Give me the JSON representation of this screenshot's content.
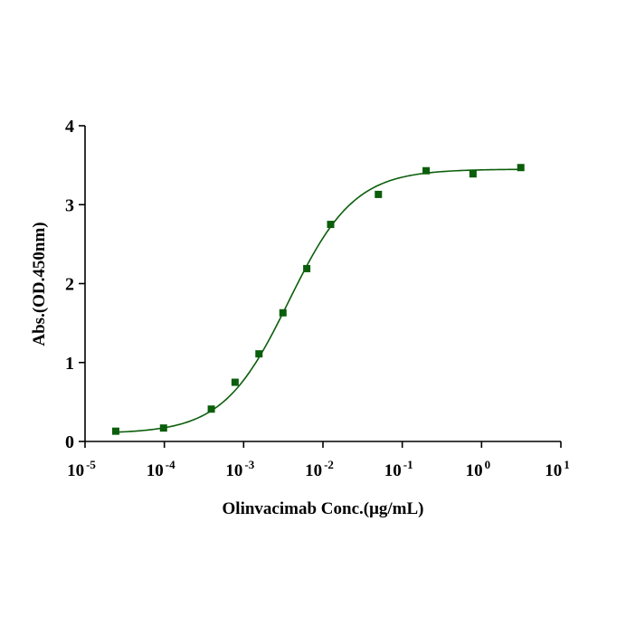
{
  "chart_data": {
    "type": "scatter",
    "title": "",
    "xlabel": "Olinvacimab Conc.(μg/mL)",
    "ylabel": "Abs.(OD.450nm)",
    "xscale": "log",
    "xlim": [
      1e-05,
      10
    ],
    "ylim": [
      0,
      4
    ],
    "x_ticks": [
      {
        "base": "10",
        "exp": "-5",
        "value": -5
      },
      {
        "base": "10",
        "exp": "-4",
        "value": -4
      },
      {
        "base": "10",
        "exp": "-3",
        "value": -3
      },
      {
        "base": "10",
        "exp": "-2",
        "value": -2
      },
      {
        "base": "10",
        "exp": "-1",
        "value": -1
      },
      {
        "base": "10",
        "exp": "0",
        "value": 0
      },
      {
        "base": "10",
        "exp": "1",
        "value": 1
      }
    ],
    "y_ticks": [
      "0",
      "1",
      "2",
      "3",
      "4"
    ],
    "grid": false,
    "color": "#0b5e0b",
    "series": [
      {
        "name": "Olinvacimab",
        "x": [
          2.44e-05,
          9.77e-05,
          0.000391,
          0.00078,
          0.00156,
          0.00313,
          0.00625,
          0.0125,
          0.05,
          0.2,
          0.78,
          3.125
        ],
        "y": [
          0.13,
          0.17,
          0.41,
          0.75,
          1.11,
          1.63,
          2.19,
          2.75,
          3.13,
          3.43,
          3.39,
          3.47
        ]
      }
    ],
    "fit": {
      "model": "4PL",
      "bottom": 0.1,
      "top": 3.45,
      "ec50": 0.0037,
      "hill": 1.05
    }
  }
}
